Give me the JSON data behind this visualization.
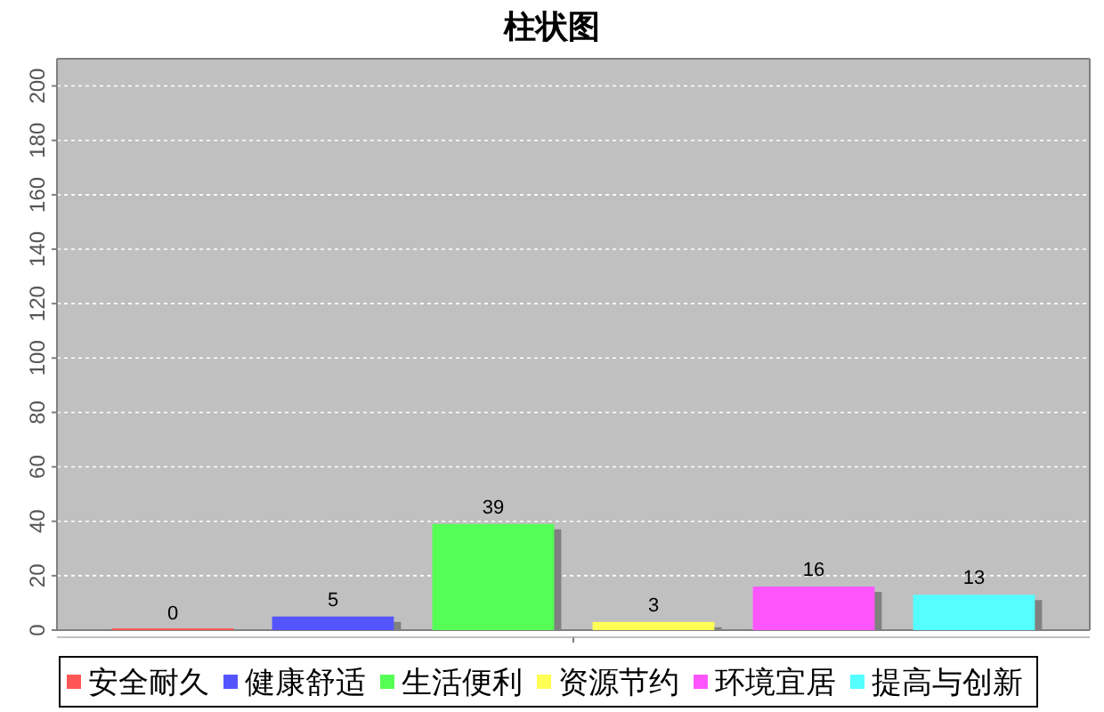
{
  "chart_data": {
    "type": "bar",
    "title": "柱状图",
    "categories": [
      null
    ],
    "series": [
      {
        "name": "安全耐久",
        "color": "#ff5555",
        "values": [
          0
        ]
      },
      {
        "name": "健康舒适",
        "color": "#5555ff",
        "values": [
          5
        ]
      },
      {
        "name": "生活便利",
        "color": "#55ff55",
        "values": [
          39
        ]
      },
      {
        "name": "资源节约",
        "color": "#ffff55",
        "values": [
          3
        ]
      },
      {
        "name": "环境宜居",
        "color": "#ff55ff",
        "values": [
          16
        ]
      },
      {
        "name": "提高与创新",
        "color": "#55ffff",
        "values": [
          13
        ]
      }
    ],
    "ylim": [
      0,
      210
    ],
    "yticks": [
      0,
      20,
      40,
      60,
      80,
      100,
      120,
      140,
      160,
      180,
      200
    ],
    "grid": "y",
    "data_labels": true,
    "legend": "bottom"
  }
}
